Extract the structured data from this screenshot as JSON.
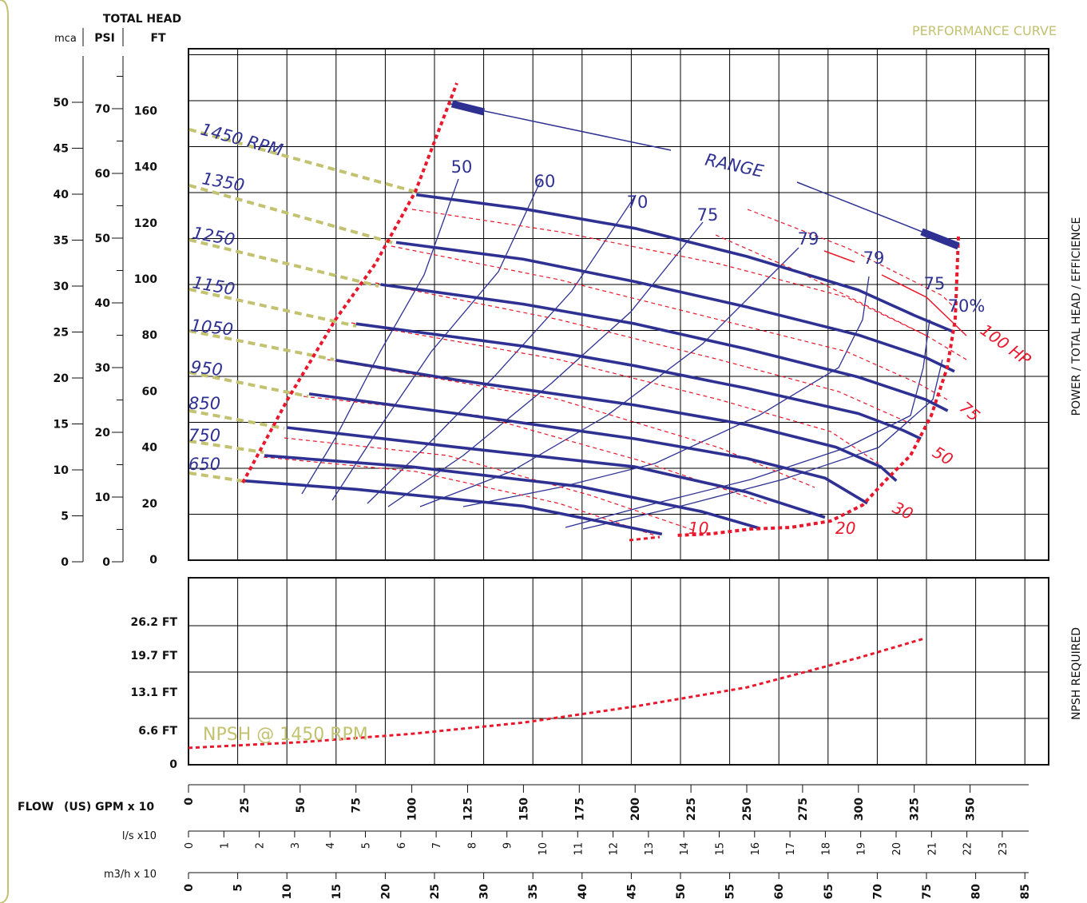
{
  "header": {
    "title": "PERFORMANCE CURVE"
  },
  "colors": {
    "rpm_curve": "#2e3192",
    "efficiency": "#2e3192",
    "power": "#e8192c",
    "npsh": "#e8192c",
    "extension": "#c2c270",
    "grid": "#000000",
    "border": "#c2c270"
  },
  "axes": {
    "total_head_title": "TOTAL HEAD",
    "head_units": [
      "mca",
      "PSI",
      "FT"
    ],
    "mca_ticks": [
      "0",
      "5",
      "10",
      "15",
      "20",
      "25",
      "30",
      "35",
      "40",
      "45",
      "50"
    ],
    "psi_ticks": [
      "0",
      "10",
      "20",
      "30",
      "40",
      "50",
      "60",
      "70"
    ],
    "ft_ticks": [
      "0",
      "20",
      "40",
      "60",
      "80",
      "100",
      "120",
      "140",
      "160"
    ],
    "right_title": "POWER / TOTAL HEAD / EFFICIENCE",
    "npsh_title": "NPSH REQUIRED",
    "npsh_ticks": [
      "0",
      "6.6 FT",
      "13.1 FT",
      "19.7 FT",
      "26.2 FT"
    ],
    "flow_title": "FLOW",
    "gpm_label": "(US) GPM  x 10",
    "gpm_ticks": [
      "0",
      "25",
      "50",
      "75",
      "100",
      "125",
      "150",
      "175",
      "200",
      "225",
      "250",
      "275",
      "300",
      "325",
      "350"
    ],
    "ls_label": "l/s x10",
    "ls_ticks": [
      "0",
      "1",
      "2",
      "3",
      "4",
      "5",
      "6",
      "7",
      "8",
      "9",
      "10",
      "11",
      "12",
      "13",
      "14",
      "15",
      "16",
      "17",
      "18",
      "19",
      "20",
      "21",
      "22",
      "23"
    ],
    "m3h_label": "m3/h x 10",
    "m3h_ticks": [
      "0",
      "5",
      "10",
      "15",
      "20",
      "25",
      "30",
      "35",
      "40",
      "45",
      "50",
      "55",
      "60",
      "65",
      "70",
      "75",
      "80",
      "85"
    ]
  },
  "labels": {
    "range": "RANGE",
    "rpm": [
      "1450 RPM",
      "1350",
      "1250",
      "1150",
      "1050",
      "950",
      "850",
      "750",
      "650"
    ],
    "efficiency": [
      "50",
      "60",
      "70",
      "75",
      "79",
      "79",
      "75",
      "70%"
    ],
    "power": [
      "100 HP",
      "75",
      "50",
      "30",
      "20",
      "10"
    ],
    "npsh_note": "NPSH @ 1450 RPM"
  },
  "chart_data": [
    {
      "type": "line",
      "title": "PERFORMANCE CURVE",
      "xlabel": "FLOW (US) GPM x 10",
      "ylabel": "TOTAL HEAD FT",
      "xlim": [
        0,
        375
      ],
      "ylim": [
        0,
        180
      ],
      "grid": true,
      "series": [
        {
          "name": "1450 RPM",
          "x": [
            102,
            150,
            200,
            250,
            300,
            325,
            343
          ],
          "y": [
            130,
            125,
            118,
            108,
            96,
            87,
            81
          ]
        },
        {
          "name": "1350",
          "x": [
            93,
            150,
            200,
            250,
            300,
            330,
            343
          ],
          "y": [
            113,
            107,
            99,
            90,
            80,
            72,
            67
          ]
        },
        {
          "name": "1250",
          "x": [
            86,
            150,
            200,
            250,
            300,
            330,
            340
          ],
          "y": [
            98,
            91,
            84,
            75,
            65,
            57,
            53
          ]
        },
        {
          "name": "1150",
          "x": [
            75,
            150,
            200,
            250,
            300,
            320,
            328
          ],
          "y": [
            84,
            76,
            69,
            61,
            52,
            46,
            43
          ]
        },
        {
          "name": "1050",
          "x": [
            66,
            120,
            200,
            250,
            290,
            310,
            317
          ],
          "y": [
            71,
            64,
            55,
            48,
            40,
            33,
            28
          ]
        },
        {
          "name": "950",
          "x": [
            54,
            120,
            200,
            250,
            285,
            304
          ],
          "y": [
            59,
            52,
            43,
            36,
            29,
            20
          ]
        },
        {
          "name": "850",
          "x": [
            44,
            120,
            200,
            250,
            285
          ],
          "y": [
            47,
            40,
            33,
            24,
            15
          ]
        },
        {
          "name": "750",
          "x": [
            34,
            100,
            175,
            230,
            256
          ],
          "y": [
            37,
            33,
            26,
            17,
            11
          ]
        },
        {
          "name": "650",
          "x": [
            25,
            75,
            150,
            200,
            212
          ],
          "y": [
            28,
            25,
            19,
            11,
            9
          ]
        }
      ]
    },
    {
      "type": "line",
      "xlabel": "FLOW (US) GPM x 10",
      "ylabel": "NPSH REQUIRED",
      "grid": true,
      "series": [
        {
          "name": "NPSH @ 1450 RPM",
          "x": [
            0,
            50,
            100,
            150,
            200,
            250,
            300,
            330
          ],
          "y": [
            2.4,
            3.2,
            4.4,
            6.0,
            8.3,
            11.0,
            15.2,
            18.0
          ]
        }
      ]
    }
  ]
}
